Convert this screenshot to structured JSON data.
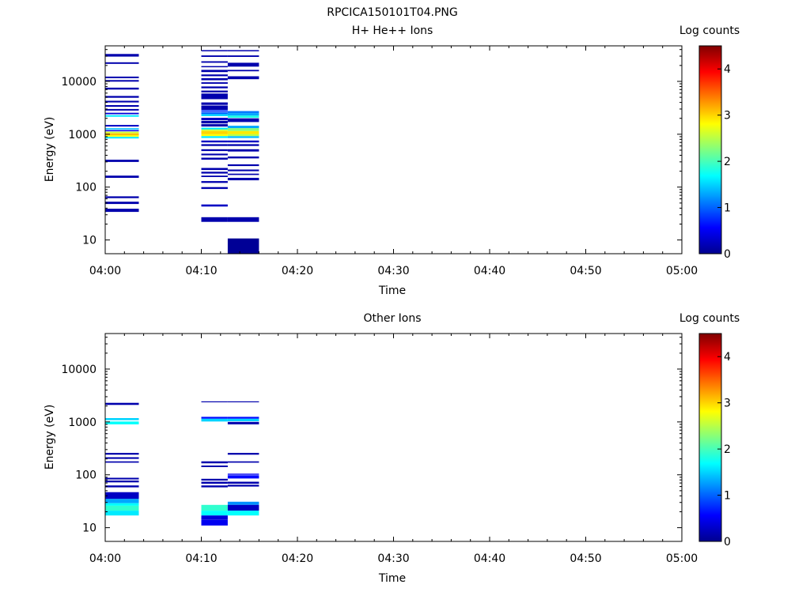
{
  "figure_title": "RPCICA150101T04.PNG",
  "chart_data": [
    {
      "type": "heatmap",
      "title": "H+ He++ Ions",
      "xlabel": "Time",
      "ylabel": "Energy (eV)",
      "colorbar_label": "Log counts",
      "xlim": [
        "04:00",
        "05:00"
      ],
      "xticks": [
        "04:00",
        "04:10",
        "04:20",
        "04:30",
        "04:40",
        "04:50",
        "05:00"
      ],
      "ylim": [
        5.5,
        47000
      ],
      "y_scale": "log",
      "yticks": [
        10,
        100,
        1000,
        10000
      ],
      "ytick_labels": [
        "10",
        "100",
        "1000",
        "10000"
      ],
      "clim": [
        0,
        4.5
      ],
      "cbar_ticks": [
        0,
        1,
        2,
        3,
        4
      ],
      "columns": [
        {
          "t0": "04:00",
          "t1": "04:03:30",
          "cells": [
            [
              29500,
              33000,
              0.2
            ],
            [
              21500,
              23000,
              0.2
            ],
            [
              11500,
              12300,
              0.2
            ],
            [
              9900,
              10600,
              0.2
            ],
            [
              7000,
              7600,
              0.2
            ],
            [
              4900,
              5300,
              0.2
            ],
            [
              4000,
              4300,
              0.2
            ],
            [
              3300,
              3550,
              0.2
            ],
            [
              2800,
              3000,
              0.2
            ],
            [
              2400,
              2550,
              0.4
            ],
            [
              2150,
              2300,
              1.6
            ],
            [
              1400,
              1500,
              0.3
            ],
            [
              1230,
              1300,
              1.4
            ],
            [
              1140,
              1200,
              0.5
            ],
            [
              1050,
              1120,
              2.6
            ],
            [
              960,
              1040,
              3.1
            ],
            [
              900,
              960,
              2.8
            ],
            [
              830,
              890,
              1.6
            ],
            [
              300,
              330,
              0.2
            ],
            [
              150,
              165,
              0.2
            ],
            [
              62,
              67,
              0.2
            ],
            [
              48,
              53,
              0.2
            ],
            [
              34,
              39,
              0.2
            ]
          ]
        },
        {
          "t0": "04:10",
          "t1": "04:12:45",
          "cells": [
            [
              37000,
              39000,
              0.2
            ],
            [
              29000,
              31000,
              0.2
            ],
            [
              22500,
              24000,
              0.2
            ],
            [
              18500,
              19500,
              0.2
            ],
            [
              15000,
              16500,
              0.2
            ],
            [
              12500,
              13500,
              0.2
            ],
            [
              10500,
              11500,
              0.2
            ],
            [
              9000,
              9600,
              0.2
            ],
            [
              7400,
              8000,
              0.2
            ],
            [
              6200,
              6700,
              0.2
            ],
            [
              4600,
              5900,
              0.2
            ],
            [
              3600,
              4000,
              0.2
            ],
            [
              2900,
              3500,
              0.2
            ],
            [
              2650,
              2850,
              0.8
            ],
            [
              2400,
              2600,
              1.0
            ],
            [
              2200,
              2400,
              1.5
            ],
            [
              1850,
              2050,
              0.3
            ],
            [
              1600,
              1800,
              0.2
            ],
            [
              1400,
              1550,
              0.2
            ],
            [
              1230,
              1330,
              1.6
            ],
            [
              1150,
              1230,
              2.6
            ],
            [
              1000,
              1150,
              3.0
            ],
            [
              920,
              1000,
              2.8
            ],
            [
              850,
              920,
              1.6
            ],
            [
              700,
              760,
              0.3
            ],
            [
              600,
              650,
              0.2
            ],
            [
              480,
              520,
              0.2
            ],
            [
              400,
              430,
              0.2
            ],
            [
              330,
              360,
              0.2
            ],
            [
              210,
              230,
              0.2
            ],
            [
              180,
              195,
              0.2
            ],
            [
              155,
              165,
              0.2
            ],
            [
              120,
              130,
              0.2
            ],
            [
              92,
              100,
              0.2
            ],
            [
              43,
              47,
              0.3
            ],
            [
              22,
              27,
              0.2
            ]
          ]
        },
        {
          "t0": "04:12:45",
          "t1": "04:16",
          "cells": [
            [
              37000,
              39000,
              0.2
            ],
            [
              29000,
              31000,
              0.2
            ],
            [
              19000,
              22500,
              0.2
            ],
            [
              15500,
              16500,
              0.2
            ],
            [
              11000,
              12500,
              0.2
            ],
            [
              2500,
              2750,
              1.1
            ],
            [
              2250,
              2500,
              1.3
            ],
            [
              2050,
              2250,
              1.8
            ],
            [
              1700,
              2000,
              0.2
            ],
            [
              1300,
              1450,
              1.3
            ],
            [
              1150,
              1300,
              2.3
            ],
            [
              1000,
              1150,
              2.9
            ],
            [
              920,
              1000,
              2.5
            ],
            [
              850,
              920,
              1.4
            ],
            [
              700,
              760,
              0.3
            ],
            [
              600,
              650,
              0.2
            ],
            [
              470,
              520,
              0.2
            ],
            [
              350,
              380,
              0.2
            ],
            [
              250,
              270,
              0.2
            ],
            [
              200,
              215,
              0.2
            ],
            [
              170,
              180,
              0.2
            ],
            [
              135,
              150,
              0.2
            ],
            [
              22,
              27,
              0.2
            ],
            [
              5.5,
              10.7,
              0.1
            ]
          ]
        }
      ]
    },
    {
      "type": "heatmap",
      "title": "Other Ions",
      "xlabel": "Time",
      "ylabel": "Energy (eV)",
      "colorbar_label": "Log counts",
      "xlim": [
        "04:00",
        "05:00"
      ],
      "xticks": [
        "04:00",
        "04:10",
        "04:20",
        "04:30",
        "04:40",
        "04:50",
        "05:00"
      ],
      "ylim": [
        5.5,
        47000
      ],
      "y_scale": "log",
      "yticks": [
        10,
        100,
        1000,
        10000
      ],
      "ytick_labels": [
        "10",
        "100",
        "1000",
        "10000"
      ],
      "clim": [
        0,
        4.5
      ],
      "cbar_ticks": [
        0,
        1,
        2,
        3,
        4
      ],
      "columns": [
        {
          "t0": "04:00",
          "t1": "04:03:30",
          "cells": [
            [
              2100,
              2300,
              0.2
            ],
            [
              1080,
              1180,
              1.5
            ],
            [
              900,
              1020,
              1.7
            ],
            [
              240,
              260,
              0.2
            ],
            [
              200,
              215,
              0.2
            ],
            [
              170,
              180,
              0.2
            ],
            [
              82,
              88,
              0.2
            ],
            [
              72,
              78,
              0.2
            ],
            [
              58,
              63,
              0.2
            ],
            [
              35,
              47,
              0.3
            ],
            [
              29,
              35,
              1.3
            ],
            [
              26,
              29,
              1.7
            ],
            [
              21,
              26,
              1.9
            ],
            [
              17,
              21,
              1.6
            ]
          ]
        },
        {
          "t0": "04:10",
          "t1": "04:12:45",
          "cells": [
            [
              2350,
              2450,
              0.2
            ],
            [
              1150,
              1250,
              0.6
            ],
            [
              1020,
              1150,
              1.5
            ],
            [
              165,
              180,
              0.2
            ],
            [
              140,
              150,
              0.2
            ],
            [
              78,
              84,
              0.2
            ],
            [
              68,
              74,
              0.2
            ],
            [
              58,
              63,
              0.2
            ],
            [
              21,
              27,
              1.9
            ],
            [
              17,
              21,
              1.7
            ],
            [
              14,
              17,
              0.4
            ],
            [
              11,
              14,
              0.5
            ]
          ]
        },
        {
          "t0": "04:12:45",
          "t1": "04:16",
          "cells": [
            [
              2350,
              2450,
              0.2
            ],
            [
              1150,
              1250,
              0.6
            ],
            [
              1030,
              1150,
              1.5
            ],
            [
              900,
              1000,
              0.2
            ],
            [
              240,
              260,
              0.2
            ],
            [
              170,
              180,
              0.2
            ],
            [
              100,
              105,
              0.5
            ],
            [
              85,
              98,
              0.6
            ],
            [
              68,
              74,
              0.2
            ],
            [
              60,
              65,
              0.2
            ],
            [
              27,
              31,
              1.2
            ],
            [
              21,
              27,
              0.3
            ],
            [
              17,
              21,
              1.7
            ]
          ]
        }
      ]
    }
  ]
}
